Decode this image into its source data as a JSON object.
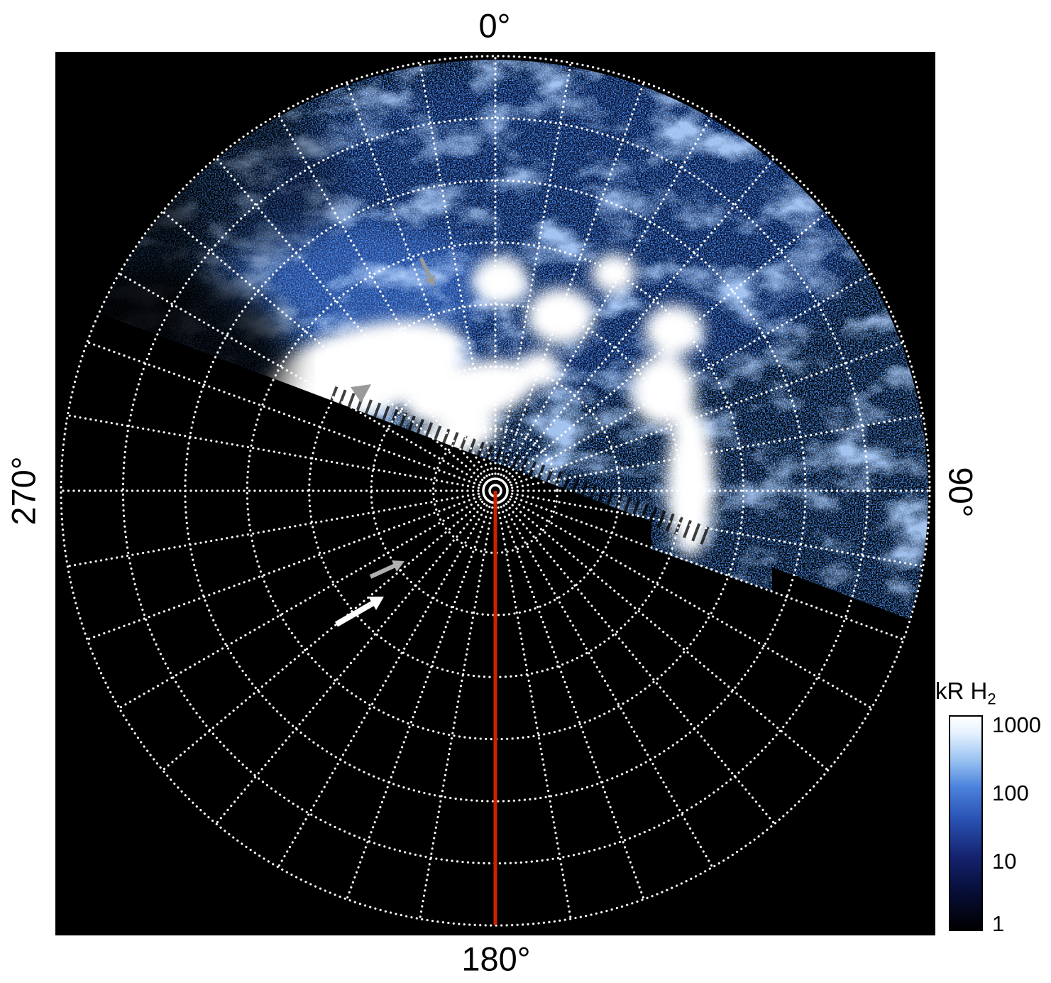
{
  "figure": {
    "angle_labels": {
      "top": "0°",
      "right": "90°",
      "bottom": "180°",
      "left": "270°"
    },
    "colorbar": {
      "title_main": "kR H",
      "title_sub": "2",
      "ticks": [
        "1000",
        "100",
        "10",
        "1"
      ]
    },
    "colors": {
      "background": "#ffffff",
      "plot_background": "#000000",
      "grid": "#ffffff",
      "meridian_line": "#cc2200",
      "emission_low": "#081c50",
      "emission_mid": "#2a52b4",
      "emission_high": "#ffffff"
    }
  },
  "chart_data": {
    "type": "heatmap",
    "projection": "polar",
    "quantity": "H2 auroral emission brightness",
    "units": "kR",
    "title": "",
    "angular_tick_labels": [
      "0°",
      "90°",
      "180°",
      "270°"
    ],
    "grid": {
      "rings": 7,
      "spoke_interval_deg": 10,
      "style": "dotted-white"
    },
    "color_scale": {
      "type": "log",
      "min": 1,
      "max": 1000,
      "ticks": [
        1000,
        100,
        10,
        1
      ],
      "label": "kR H2",
      "colormap": "black-blue-white"
    },
    "coverage": "Emission fills the sector from roughly 250° through 0° to about 110° azimuth, bounded below by a ragged diagonal edge passing just above the pole; dark-blue noisy emission (1-100 kR) toward the outer boundary and saturated white patches (~1000 kR) clustered nearer the pole, including a bright elongated band left of the pole and a bright streak extending equatorward near 90°.",
    "annotations": [
      {
        "type": "line",
        "label": "180° meridian marker from pole to outer ring",
        "color": "#cc2200"
      },
      {
        "type": "arrow",
        "color": "gray",
        "count": 3
      },
      {
        "type": "arrow",
        "color": "white",
        "count": 1
      }
    ],
    "legend_position": "bottom-right colorbar"
  }
}
